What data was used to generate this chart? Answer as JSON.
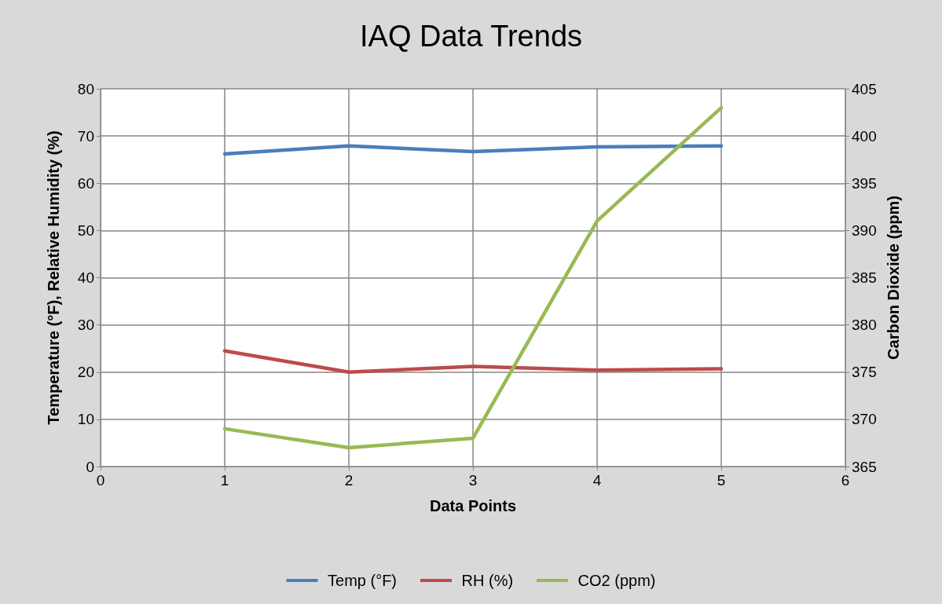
{
  "chart_data": {
    "type": "line",
    "title": "IAQ Data Trends",
    "xlabel": "Data Points",
    "ylabel": "Temperature (°F), Relative Humidity (%)",
    "y2label": "Carbon Dioxide (ppm)",
    "x": [
      1,
      2,
      3,
      4,
      5
    ],
    "series": [
      {
        "name": "Temp (°F)",
        "color": "#4a7ebb",
        "values": [
          66.2,
          67.9,
          66.7,
          67.7,
          67.9
        ]
      },
      {
        "name": "RH (%)",
        "color": "#be4b48",
        "values": [
          24.5,
          20.0,
          21.2,
          20.4,
          20.7
        ]
      },
      {
        "name": "CO2 (ppm)",
        "color": "#98b954",
        "values": [
          369,
          367,
          368,
          391,
          403
        ],
        "axis": "y2"
      }
    ],
    "xlim": [
      0,
      6
    ],
    "xticks": [
      0,
      1,
      2,
      3,
      4,
      5,
      6
    ],
    "ylim": [
      0,
      80
    ],
    "yticks": [
      0,
      10,
      20,
      30,
      40,
      50,
      60,
      70,
      80
    ],
    "y2lim": [
      365,
      405
    ],
    "y2ticks": [
      365,
      370,
      375,
      380,
      385,
      390,
      395,
      400,
      405
    ],
    "grid": true,
    "legend": "bottom",
    "marker": "none",
    "line_style": "solid"
  }
}
